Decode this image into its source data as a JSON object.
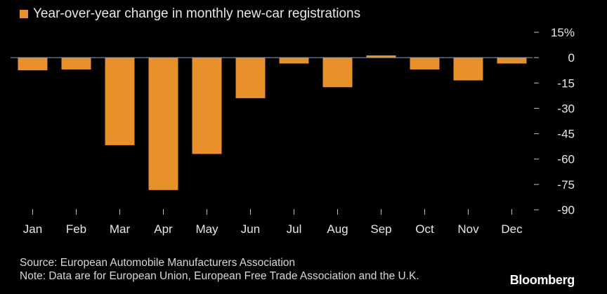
{
  "chart_data": {
    "type": "bar",
    "legend": "Year-over-year change in monthly new-car registrations",
    "categories": [
      "Jan",
      "Feb",
      "Mar",
      "Apr",
      "May",
      "Jun",
      "Jul",
      "Aug",
      "Sep",
      "Oct",
      "Nov",
      "Dec"
    ],
    "values": [
      -7.5,
      -7.0,
      -51.8,
      -78.3,
      -57.0,
      -24.0,
      -3.5,
      -17.5,
      1.3,
      -7.0,
      -13.5,
      -3.5
    ],
    "yticks": [
      "15%",
      "0",
      "-15",
      "-30",
      "-45",
      "-60",
      "-75",
      "-90"
    ],
    "ytick_values": [
      15,
      0,
      -15,
      -30,
      -45,
      -60,
      -75,
      -90
    ],
    "ylim": [
      -90,
      15
    ],
    "xlabel": "",
    "ylabel": "",
    "grid": false,
    "y_axis_side": "right",
    "bar_color": "#e8912a",
    "zero_line_color": "#7fa3c8"
  },
  "source": "Source: European Automobile Manufacturers Association",
  "note": "Note: Data are for European Union, European Free Trade Association and the U.K.",
  "brand": "Bloomberg",
  "colors": {
    "background": "#000000",
    "text": "#e6e6e6",
    "tick_mark": "#bfbfbf"
  }
}
